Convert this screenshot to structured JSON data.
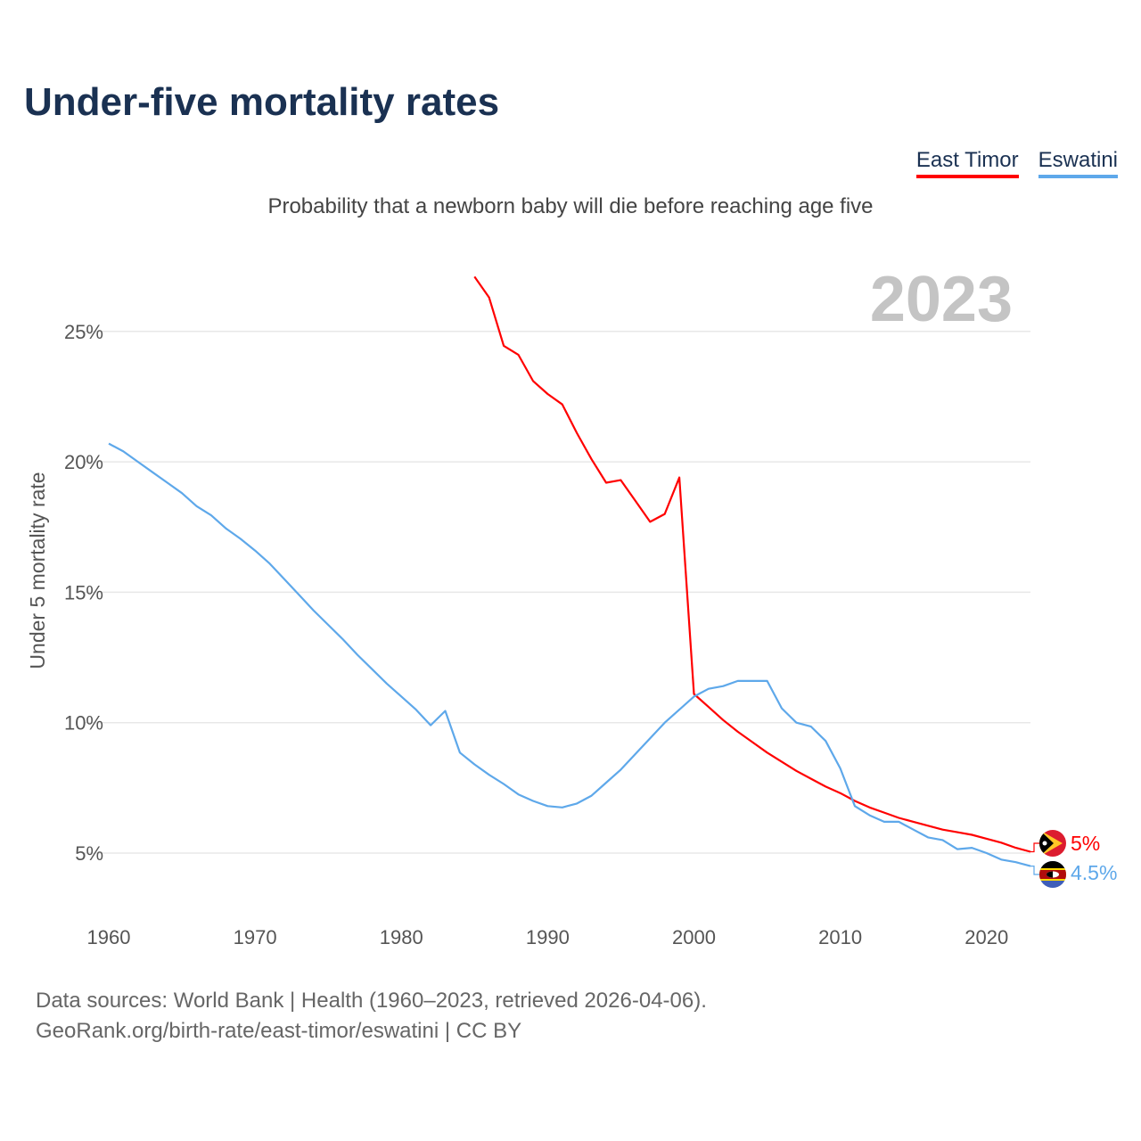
{
  "chart_data": {
    "type": "line",
    "title": "Under-five mortality rates",
    "subtitle": "Probability that a newborn baby will die before reaching age five",
    "ylabel": "Under 5 mortality rate",
    "xlabel": "",
    "year_label": "2023",
    "xlim": [
      1960,
      2023
    ],
    "ylim": [
      2.5,
      27.5
    ],
    "x_ticks": [
      1960,
      1970,
      1980,
      1990,
      2000,
      2010,
      2020
    ],
    "y_ticks": [
      5,
      10,
      15,
      20,
      25
    ],
    "y_tick_labels": [
      "5%",
      "10%",
      "15%",
      "20%",
      "25%"
    ],
    "grid": true,
    "legend_position": "top-right",
    "series": [
      {
        "name": "East Timor",
        "color": "#ff0000",
        "end_label": "5%",
        "start_year": 1985,
        "values": [
          27.1,
          26.3,
          24.45,
          24.1,
          23.1,
          22.6,
          22.2,
          21.1,
          20.1,
          19.2,
          19.3,
          18.5,
          17.7,
          18.0,
          19.4,
          11.1,
          10.6,
          10.1,
          9.65,
          9.25,
          8.85,
          8.5,
          8.15,
          7.85,
          7.55,
          7.3,
          7.0,
          6.75,
          6.55,
          6.35,
          6.2,
          6.05,
          5.9,
          5.8,
          5.7,
          5.55,
          5.4,
          5.2,
          5.05
        ]
      },
      {
        "name": "Eswatini",
        "color": "#5ea8ea",
        "end_label": "4.5%",
        "start_year": 1960,
        "values": [
          20.7,
          20.4,
          20.0,
          19.6,
          19.2,
          18.8,
          18.3,
          17.95,
          17.45,
          17.05,
          16.6,
          16.1,
          15.5,
          14.9,
          14.3,
          13.75,
          13.2,
          12.6,
          12.05,
          11.5,
          11.0,
          10.5,
          9.9,
          10.45,
          8.85,
          8.4,
          8.0,
          7.65,
          7.25,
          7.0,
          6.8,
          6.75,
          6.9,
          7.2,
          7.7,
          8.2,
          8.8,
          9.4,
          10.0,
          10.5,
          11.0,
          11.3,
          11.4,
          11.6,
          11.6,
          11.6,
          10.55,
          10.0,
          9.85,
          9.3,
          8.25,
          6.8,
          6.45,
          6.2,
          6.2,
          5.9,
          5.6,
          5.5,
          5.15,
          5.2,
          5.0,
          4.75,
          4.65,
          4.5
        ]
      }
    ]
  },
  "sources": {
    "line1": "Data sources: World Bank | Health (1960–2023, retrieved 2026-04-06).",
    "line2": "GeoRank.org/birth-rate/east-timor/eswatini | CC BY"
  }
}
